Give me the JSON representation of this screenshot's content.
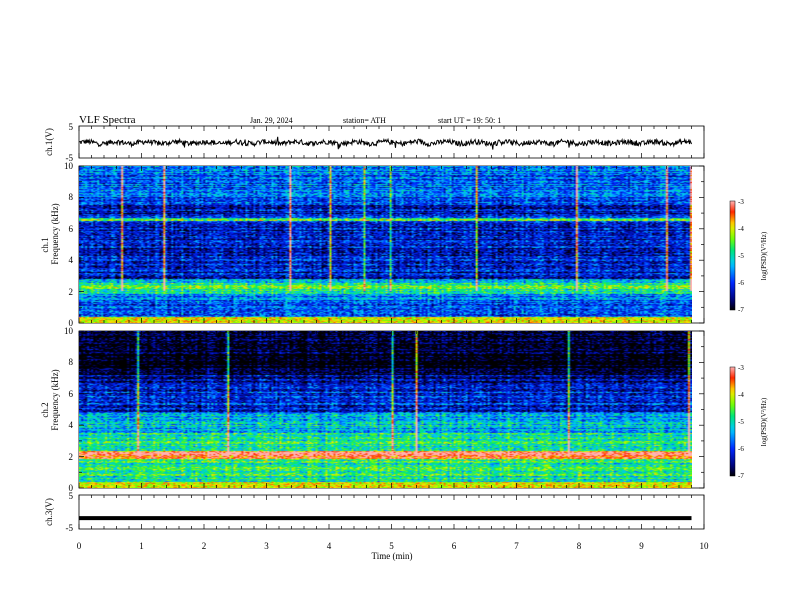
{
  "header": {
    "title": "VLF  Spectra",
    "date": "Jan.  29,  2024",
    "station": "station= ATH",
    "start": "start  UT  =    19: 50: 1"
  },
  "colors": {
    "trace": "#000000",
    "spectrum_low": "#00008b",
    "spectrum_high": "#ff0000"
  },
  "chart_data": [
    {
      "type": "line",
      "name": "ch1-waveform",
      "ylabel": "ch.1(V)",
      "ylim": [
        -5,
        5
      ],
      "yticks": [
        "5",
        "-5"
      ],
      "xlim": [
        0,
        10
      ],
      "x_end": 9.8,
      "description_of_signal": "noisy trace around 0 V"
    },
    {
      "type": "heatmap",
      "name": "ch1-spectrogram",
      "ylabel_top": "ch.1",
      "ylabel": "Frequency  (kHz)",
      "ylim": [
        0,
        10
      ],
      "yticks": [
        "0",
        "2",
        "4",
        "6",
        "8",
        "10"
      ],
      "xlim": [
        0,
        10
      ],
      "x_end": 9.8,
      "colorbar": {
        "label": "log(PSD)(V²/Hz)",
        "range": [
          -7,
          -3
        ],
        "ticks": [
          "-3",
          "-4",
          "-5",
          "-6",
          "-7"
        ]
      }
    },
    {
      "type": "heatmap",
      "name": "ch2-spectrogram",
      "ylabel_top": "ch.2",
      "ylabel": "Frequency  (kHz)",
      "ylim": [
        0,
        10
      ],
      "yticks": [
        "0",
        "2",
        "4",
        "6",
        "8",
        "10"
      ],
      "xlim": [
        0,
        10
      ],
      "x_end": 9.8,
      "colorbar": {
        "label": "log(PSD)(V²/Hz)",
        "range": [
          -7,
          -3
        ],
        "ticks": [
          "-3",
          "-4",
          "-5",
          "-6",
          "-7"
        ]
      }
    },
    {
      "type": "line",
      "name": "ch3-waveform",
      "ylabel": "ch.3(V)",
      "ylim": [
        -5,
        5
      ],
      "yticks": [
        "5",
        "-5"
      ],
      "xlim": [
        0,
        10
      ],
      "x_end": 9.8,
      "constant_value": -1.8
    }
  ],
  "xaxis": {
    "label": "Time  (min)",
    "ticks": [
      "0",
      "1",
      "2",
      "3",
      "4",
      "5",
      "6",
      "7",
      "8",
      "9",
      "10"
    ]
  }
}
